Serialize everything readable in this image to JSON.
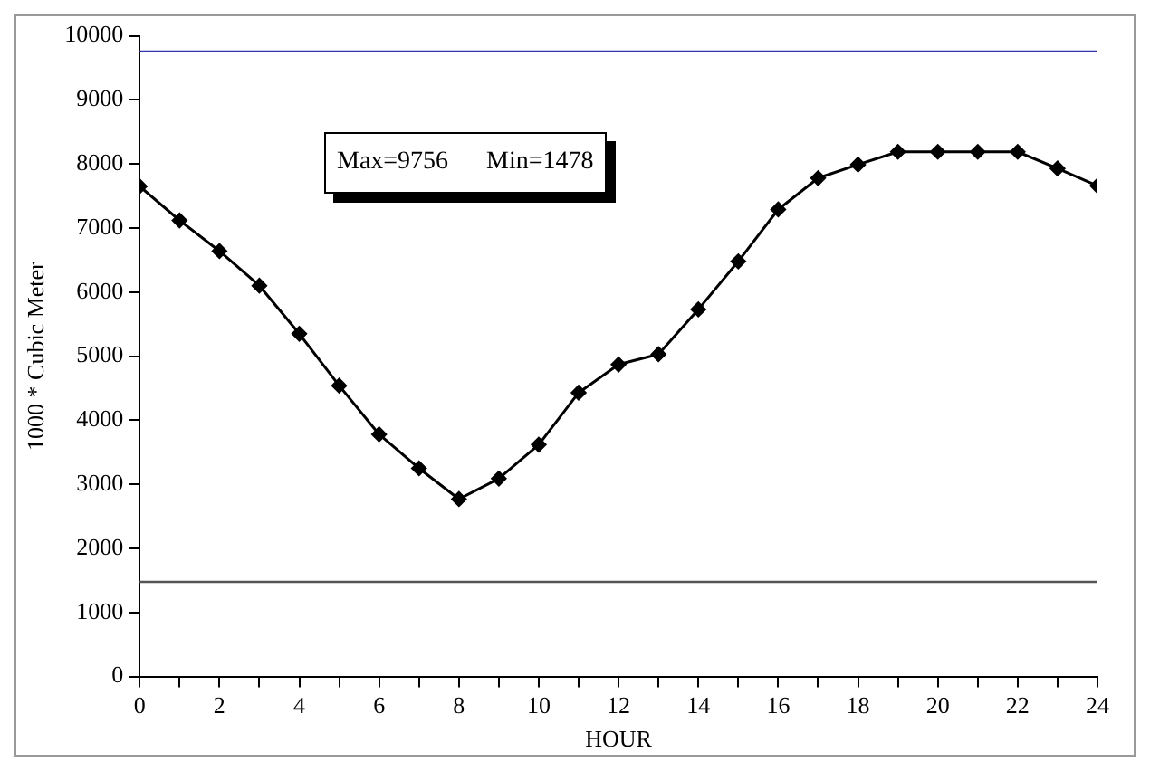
{
  "chart_data": {
    "type": "line",
    "xlabel": "HOUR",
    "ylabel": "1000 * Cubic Meter",
    "x": [
      0,
      1,
      2,
      3,
      4,
      5,
      6,
      7,
      8,
      9,
      10,
      11,
      12,
      13,
      14,
      15,
      16,
      17,
      18,
      19,
      20,
      21,
      22,
      23,
      24
    ],
    "series": [
      {
        "color": "#000000",
        "values": [
          7650,
          7120,
          6640,
          6100,
          5350,
          4540,
          3780,
          3250,
          2770,
          3090,
          3620,
          4430,
          4870,
          5030,
          5730,
          6480,
          7290,
          7780,
          7990,
          8190,
          8190,
          8190,
          8190,
          7930,
          7660
        ]
      }
    ],
    "xlim": [
      0,
      24
    ],
    "xticks": [
      0,
      {
        "value": 1,
        "label": null
      },
      2,
      {
        "value": 3,
        "label": null
      },
      4,
      {
        "value": 5,
        "label": null
      },
      6,
      {
        "value": 7,
        "label": null
      },
      8,
      {
        "value": 9,
        "label": null
      },
      10,
      {
        "value": 11,
        "label": null
      },
      12,
      {
        "value": 13,
        "label": null
      },
      14,
      {
        "value": 15,
        "label": null
      },
      16,
      {
        "value": 17,
        "label": null
      },
      18,
      {
        "value": 19,
        "label": null
      },
      20,
      {
        "value": 21,
        "label": null
      },
      22,
      {
        "value": 23,
        "label": null
      },
      24
    ],
    "ylim": [
      0,
      10000
    ],
    "yticks": [
      0,
      1000,
      2000,
      3000,
      4000,
      5000,
      6000,
      7000,
      8000,
      9000,
      10000
    ],
    "ref_lines": [
      {
        "axis": "y",
        "value": 9756,
        "color": "#3333aa"
      },
      {
        "axis": "y",
        "value": 1478,
        "color": "#555555"
      }
    ],
    "annotations": [
      "Max=9756      Min=1478"
    ],
    "marker": "diamond",
    "line_style": "solid",
    "grid": false,
    "legend": false
  }
}
